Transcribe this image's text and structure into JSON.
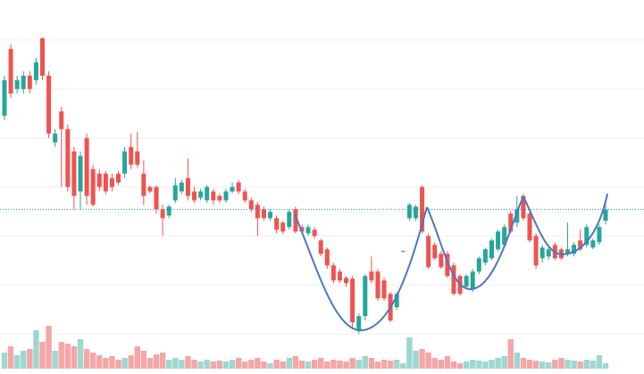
{
  "chart_data": {
    "type": "candlestick",
    "open": [
      290,
      365,
      320,
      320,
      335,
      330,
      377,
      335,
      260,
      295,
      275,
      250,
      205,
      265,
      230,
      225,
      225,
      220,
      225,
      225,
      255,
      250,
      225,
      210,
      210,
      185,
      178,
      195,
      205,
      220,
      205,
      198,
      195,
      205,
      200,
      195,
      205,
      215,
      205,
      195,
      190,
      185,
      175,
      175,
      170,
      165,
      185,
      165,
      158,
      162,
      150,
      140,
      122,
      115,
      108,
      107,
      48,
      65,
      115,
      115,
      105,
      90,
      75,
      138,
      175,
      175,
      210,
      155,
      145,
      135,
      135,
      122,
      110,
      98,
      95,
      115,
      125,
      130,
      140,
      145,
      180,
      170,
      200,
      180,
      155,
      130,
      132,
      145,
      140,
      135,
      135,
      150,
      145,
      142,
      148,
      172
    ],
    "high": [
      335,
      370,
      335,
      340,
      340,
      355,
      378,
      340,
      275,
      300,
      280,
      255,
      250,
      270,
      235,
      230,
      228,
      225,
      228,
      255,
      270,
      272,
      240,
      212,
      212,
      190,
      190,
      220,
      218,
      242,
      210,
      208,
      212,
      208,
      203,
      208,
      215,
      218,
      208,
      198,
      193,
      188,
      185,
      178,
      172,
      185,
      188,
      168,
      168,
      165,
      152,
      142,
      125,
      118,
      110,
      110,
      68,
      112,
      132,
      118,
      108,
      92,
      92,
      139,
      192,
      190,
      212,
      158,
      148,
      138,
      138,
      125,
      112,
      112,
      118,
      132,
      142,
      152,
      162,
      168,
      183,
      200,
      202,
      183,
      158,
      145,
      142,
      148,
      142,
      170,
      148,
      162,
      168,
      152,
      168,
      190
    ],
    "low": [
      285,
      310,
      315,
      315,
      315,
      325,
      330,
      265,
      255,
      210,
      205,
      185,
      185,
      190,
      188,
      205,
      202,
      205,
      212,
      220,
      230,
      232,
      190,
      203,
      180,
      155,
      175,
      192,
      202,
      195,
      192,
      195,
      192,
      190,
      192,
      192,
      203,
      202,
      192,
      182,
      155,
      172,
      172,
      158,
      157,
      162,
      158,
      158,
      155,
      152,
      132,
      118,
      102,
      102,
      98,
      50,
      45,
      60,
      102,
      82,
      82,
      58,
      72,
      137,
      172,
      172,
      158,
      118,
      128,
      118,
      108,
      88,
      88,
      95,
      92,
      112,
      122,
      128,
      138,
      142,
      158,
      165,
      172,
      148,
      118,
      125,
      128,
      128,
      128,
      132,
      132,
      138,
      142,
      140,
      145,
      168
    ],
    "close": [
      330,
      315,
      330,
      335,
      320,
      350,
      335,
      270,
      270,
      275,
      210,
      200,
      245,
      200,
      190,
      210,
      205,
      210,
      215,
      250,
      235,
      235,
      200,
      205,
      185,
      175,
      188,
      212,
      215,
      200,
      195,
      205,
      210,
      195,
      195,
      205,
      210,
      205,
      195,
      185,
      175,
      175,
      182,
      162,
      160,
      182,
      160,
      160,
      165,
      155,
      135,
      122,
      105,
      105,
      102,
      58,
      65,
      110,
      105,
      85,
      85,
      60,
      90,
      138,
      190,
      188,
      160,
      120,
      130,
      120,
      110,
      90,
      90,
      110,
      115,
      130,
      140,
      150,
      160,
      165,
      160,
      185,
      175,
      150,
      122,
      142,
      140,
      130,
      130,
      140,
      145,
      140,
      165,
      150,
      165,
      185
    ],
    "volume": [
      18,
      25,
      15,
      20,
      22,
      43,
      30,
      48,
      20,
      30,
      28,
      25,
      33,
      22,
      18,
      15,
      12,
      14,
      10,
      12,
      15,
      25,
      20,
      12,
      16,
      18,
      10,
      12,
      10,
      14,
      10,
      8,
      10,
      8,
      9,
      8,
      10,
      12,
      8,
      10,
      12,
      8,
      6,
      10,
      8,
      12,
      14,
      9,
      8,
      10,
      12,
      8,
      10,
      9,
      8,
      12,
      10,
      14,
      12,
      8,
      10,
      9,
      10,
      6,
      35,
      20,
      22,
      18,
      12,
      10,
      14,
      8,
      6,
      8,
      10,
      9,
      8,
      10,
      12,
      14,
      33,
      18,
      12,
      10,
      9,
      8,
      7,
      10,
      12,
      10,
      9,
      8,
      10,
      9,
      15,
      6
    ],
    "up_color": "#26a69a",
    "down_color": "#ef5350",
    "volume_up_color": "#9ed7d0",
    "volume_down_color": "#f5a6a8",
    "ylim": [
      0,
      420
    ],
    "yticks": [
      45,
      100,
      155,
      210,
      265,
      320,
      375
    ],
    "volume_ylim": [
      0,
      100
    ],
    "grid": true
  }
}
